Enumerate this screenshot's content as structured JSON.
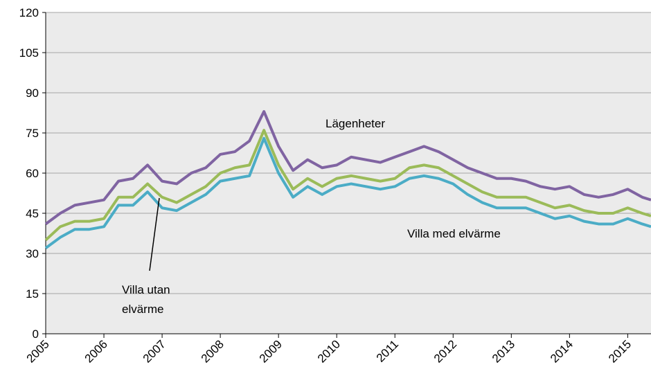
{
  "chart_data": {
    "type": "line",
    "x": [
      2005,
      2005.25,
      2005.5,
      2005.75,
      2006,
      2006.25,
      2006.5,
      2006.75,
      2007,
      2007.25,
      2007.5,
      2007.75,
      2008,
      2008.25,
      2008.5,
      2008.75,
      2009,
      2009.25,
      2009.5,
      2009.75,
      2010,
      2010.25,
      2010.5,
      2010.75,
      2011,
      2011.25,
      2011.5,
      2011.75,
      2012,
      2012.25,
      2012.5,
      2012.75,
      2013,
      2013.25,
      2013.5,
      2013.75,
      2014,
      2014.25,
      2014.5,
      2014.75,
      2015,
      2015.25,
      2015.4
    ],
    "series": [
      {
        "color": "#8064a2",
        "values": [
          41,
          45,
          48,
          49,
          50,
          57,
          58,
          63,
          57,
          56,
          60,
          62,
          67,
          68,
          72,
          83,
          70,
          61,
          65,
          62,
          63,
          66,
          65,
          64,
          66,
          68,
          70,
          68,
          65,
          62,
          60,
          58,
          58,
          57,
          55,
          54,
          55,
          52,
          51,
          52,
          54,
          51,
          50
        ]
      },
      {
        "color": "#9bbb59",
        "values": [
          35,
          40,
          42,
          42,
          43,
          51,
          51,
          56,
          51,
          49,
          52,
          55,
          60,
          62,
          63,
          76,
          63,
          54,
          58,
          55,
          58,
          59,
          58,
          57,
          58,
          62,
          63,
          62,
          59,
          56,
          53,
          51,
          51,
          51,
          49,
          47,
          48,
          46,
          45,
          45,
          47,
          45,
          44
        ]
      },
      {
        "color": "#4bacc6",
        "values": [
          32,
          36,
          39,
          39,
          40,
          48,
          48,
          53,
          47,
          46,
          49,
          52,
          57,
          58,
          59,
          73,
          60,
          51,
          55,
          52,
          55,
          56,
          55,
          54,
          55,
          58,
          59,
          58,
          56,
          52,
          49,
          47,
          47,
          47,
          45,
          43,
          44,
          42,
          41,
          41,
          43,
          41,
          40
        ]
      }
    ],
    "annotations": [
      {
        "text": "Lägenheter"
      },
      {
        "text": "Villa med elvärme"
      },
      {
        "lines": [
          "Villa utan",
          "elvärme"
        ]
      }
    ],
    "xlim": [
      2005,
      2015.4
    ],
    "xticks": [
      2005,
      2006,
      2007,
      2008,
      2009,
      2010,
      2011,
      2012,
      2013,
      2014,
      2015
    ],
    "ylim": [
      0,
      120
    ],
    "yticks": [
      0,
      15,
      30,
      45,
      60,
      75,
      90,
      105,
      120
    ],
    "grid": true
  }
}
